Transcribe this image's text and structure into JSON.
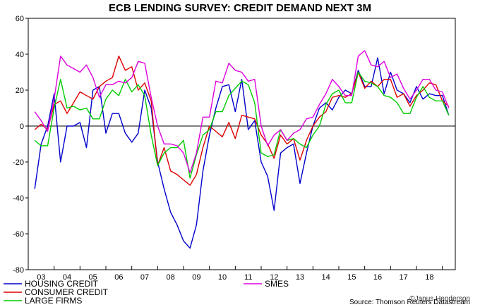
{
  "chart_data": {
    "type": "line",
    "title": "ECB LENDING SURVEY: CREDIT DEMAND NEXT 3M",
    "xlabel": "",
    "ylabel": "",
    "ylim": [
      -80,
      60
    ],
    "xlim": [
      2002.5,
      2019.0
    ],
    "grid": false,
    "zero_line": true,
    "legend_position": "bottom",
    "y_ticks": [
      -80,
      -60,
      -40,
      -20,
      0,
      20,
      40,
      60
    ],
    "x_tick_labels": [
      "03",
      "04",
      "05",
      "06",
      "07",
      "08",
      "09",
      "10",
      "11",
      "12",
      "13",
      "14",
      "15",
      "16",
      "17",
      "18"
    ],
    "x_tick_positions": [
      2003,
      2004,
      2005,
      2006,
      2007,
      2008,
      2009,
      2010,
      2011,
      2012,
      2013,
      2014,
      2015,
      2016,
      2017,
      2018
    ],
    "x": [
      2002.75,
      2003.0,
      2003.25,
      2003.5,
      2003.75,
      2004.0,
      2004.25,
      2004.5,
      2004.75,
      2005.0,
      2005.25,
      2005.5,
      2005.75,
      2006.0,
      2006.25,
      2006.5,
      2006.75,
      2007.0,
      2007.25,
      2007.5,
      2007.75,
      2008.0,
      2008.25,
      2008.5,
      2008.75,
      2009.0,
      2009.25,
      2009.5,
      2009.75,
      2010.0,
      2010.25,
      2010.5,
      2010.75,
      2011.0,
      2011.25,
      2011.5,
      2011.75,
      2012.0,
      2012.25,
      2012.5,
      2012.75,
      2013.0,
      2013.25,
      2013.5,
      2013.75,
      2014.0,
      2014.25,
      2014.5,
      2014.75,
      2015.0,
      2015.25,
      2015.5,
      2015.75,
      2016.0,
      2016.25,
      2016.5,
      2016.75,
      2017.0,
      2017.25,
      2017.5,
      2017.75,
      2018.0,
      2018.25,
      2018.5,
      2018.75
    ],
    "series": [
      {
        "name": "HOUSING CREDIT",
        "color": "#0000cc",
        "values": [
          -35,
          -10,
          0,
          18,
          -20,
          0,
          0,
          2,
          -12,
          20,
          22,
          -4,
          7,
          7,
          -4,
          -9,
          -4,
          20,
          10,
          -20,
          -35,
          -48,
          -55,
          -64,
          -68,
          -55,
          -25,
          -5,
          10,
          22,
          23,
          8,
          26,
          -2,
          3,
          -20,
          -28,
          -47,
          -15,
          -12,
          -10,
          -32,
          -15,
          0,
          10,
          13,
          9,
          16,
          20,
          18,
          31,
          22,
          22,
          38,
          18,
          30,
          20,
          18,
          13,
          22,
          15,
          18,
          17,
          17,
          6
        ]
      },
      {
        "name": "CONSUMER CREDIT",
        "color": "#dd0000",
        "values": [
          -2,
          1,
          -2,
          12,
          14,
          7,
          13,
          19,
          17,
          15,
          22,
          25,
          27,
          39,
          31,
          33,
          20,
          24,
          14,
          -22,
          -12,
          -25,
          -27,
          -30,
          -33,
          -27,
          -12,
          0,
          -3,
          -6,
          2,
          -7,
          6,
          5,
          4,
          -5,
          -10,
          -18,
          -5,
          -10,
          -7,
          -19,
          -8,
          0,
          5,
          8,
          16,
          17,
          16,
          18,
          30,
          21,
          25,
          22,
          26,
          26,
          16,
          18,
          11,
          17,
          20,
          24,
          23,
          14,
          11
        ]
      },
      {
        "name": "LARGE FIRMS",
        "color": "#00cc00",
        "values": [
          -8,
          -11,
          -11,
          10,
          26,
          10,
          11,
          9,
          10,
          4,
          4,
          15,
          20,
          17,
          26,
          19,
          23,
          17,
          -5,
          -22,
          -15,
          -12,
          -12,
          -8,
          -29,
          -16,
          -5,
          -2,
          8,
          8,
          17,
          21,
          25,
          23,
          13,
          -15,
          -17,
          -16,
          -2,
          -8,
          -7,
          -10,
          -12,
          -5,
          0,
          12,
          18,
          20,
          13,
          13,
          30,
          25,
          24,
          22,
          17,
          16,
          13,
          7,
          7,
          16,
          22,
          16,
          14,
          14,
          6
        ]
      },
      {
        "name": "SMES",
        "color": "#dd00dd",
        "values": [
          8,
          3,
          -3,
          15,
          39,
          34,
          32,
          30,
          34,
          27,
          16,
          23,
          23,
          25,
          24,
          27,
          36,
          35,
          16,
          0,
          -10,
          -10,
          -11,
          -15,
          -26,
          -15,
          5,
          5,
          25,
          24,
          35,
          31,
          30,
          25,
          26,
          0,
          -11,
          -5,
          -2,
          -8,
          -4,
          -2,
          4,
          5,
          12,
          18,
          26,
          22,
          17,
          17,
          39,
          42,
          34,
          33,
          36,
          27,
          29,
          21,
          15,
          20,
          26,
          26,
          20,
          19,
          10
        ]
      }
    ],
    "legend": [
      "HOUSING CREDIT",
      "CONSUMER CREDIT",
      "LARGE FIRMS",
      "SMES"
    ],
    "source": "Source: Thomson Reuters Datastream",
    "watermark": "©Janus Henderson"
  }
}
